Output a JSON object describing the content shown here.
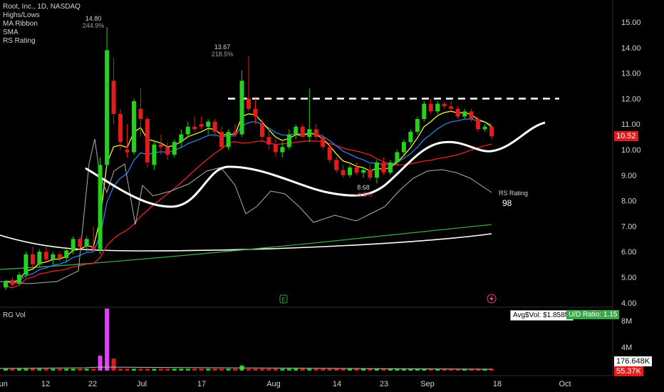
{
  "legend": {
    "title": "Root, Inc., 1D, NASDAQ",
    "items": [
      "Highs/Lows",
      "MA Ribbon",
      "SMA",
      "RS Rating"
    ]
  },
  "volume_legend": "RG Vol",
  "callouts": [
    {
      "price": "14.80",
      "pct": "244.9%"
    },
    {
      "price": "13.67",
      "pct": "218.5%"
    },
    {
      "price": "8.68",
      "pct": "–0.5%"
    }
  ],
  "rs": {
    "label": "RS Rating",
    "value": "98"
  },
  "badges": {
    "last_price": "10.52",
    "avg_vol": "Avg$Vol: $1.858M",
    "ud_ratio": "U/D Ratio: 1.15",
    "vol_white": "176.648K",
    "vol_red": "55.37K"
  },
  "colors": {
    "up": "#26d01f",
    "down": "#e21b1b",
    "ema_fast": "#f5f52a",
    "ema_mid": "#2f7ee8",
    "sma_red": "#e0201f",
    "sma_green": "#3aa84a",
    "white": "#ffffff",
    "rs": "#b0b0b0",
    "spike": "#e040fb"
  },
  "icons": {
    "earnings": "E",
    "dividend": "lightning"
  },
  "chart_data": {
    "type": "candlestick",
    "y_axis": {
      "ticks": [
        "15.00",
        "14.00",
        "13.00",
        "12.00",
        "11.00",
        "10.00",
        "9.00",
        "8.00",
        "7.00",
        "6.00",
        "5.00",
        "4.00"
      ],
      "range": [
        4.0,
        15.0
      ]
    },
    "x_axis": {
      "labels": [
        "Jun",
        "12",
        "22",
        "Jul",
        "17",
        "Aug",
        "14",
        "23",
        "Sep",
        "18",
        "Oct"
      ]
    },
    "vol_axis": {
      "ticks": [
        "8M",
        "4M"
      ]
    },
    "resistance_level": 12.0,
    "candles": [
      [
        4.6,
        4.9,
        4.5,
        4.85
      ],
      [
        4.9,
        5.0,
        4.6,
        4.7
      ],
      [
        4.75,
        5.2,
        4.7,
        5.1
      ],
      [
        5.1,
        6.0,
        5.0,
        5.9
      ],
      [
        5.9,
        6.2,
        5.4,
        5.5
      ],
      [
        5.5,
        6.1,
        5.4,
        6.0
      ],
      [
        6.0,
        6.2,
        5.6,
        5.7
      ],
      [
        5.7,
        6.0,
        5.5,
        5.9
      ],
      [
        5.9,
        6.0,
        5.6,
        5.75
      ],
      [
        5.75,
        6.1,
        5.6,
        6.05
      ],
      [
        6.05,
        6.6,
        5.9,
        6.5
      ],
      [
        6.5,
        6.6,
        6.1,
        6.2
      ],
      [
        6.2,
        6.6,
        6.0,
        6.5
      ],
      [
        6.2,
        7.0,
        6.0,
        6.1
      ],
      [
        6.1,
        9.7,
        5.9,
        9.4
      ],
      [
        9.4,
        14.8,
        9.3,
        13.9
      ],
      [
        12.7,
        13.6,
        11.0,
        11.4
      ],
      [
        11.4,
        11.6,
        10.0,
        10.3
      ],
      [
        10.0,
        11.0,
        9.7,
        9.9
      ],
      [
        9.9,
        12.0,
        9.8,
        11.9
      ],
      [
        11.6,
        12.4,
        10.5,
        11.2
      ],
      [
        11.2,
        11.3,
        9.3,
        9.5
      ],
      [
        9.4,
        10.3,
        9.2,
        10.2
      ],
      [
        10.2,
        10.6,
        9.8,
        10.1
      ],
      [
        10.1,
        10.3,
        9.6,
        9.8
      ],
      [
        9.8,
        10.4,
        9.7,
        10.3
      ],
      [
        10.3,
        10.8,
        10.1,
        10.6
      ],
      [
        10.6,
        11.1,
        10.5,
        10.9
      ],
      [
        10.9,
        11.3,
        10.7,
        10.8
      ],
      [
        11.0,
        11.3,
        10.8,
        10.9
      ],
      [
        10.9,
        11.2,
        10.6,
        11.1
      ],
      [
        11.1,
        11.2,
        10.5,
        10.7
      ],
      [
        10.7,
        10.9,
        10.0,
        10.1
      ],
      [
        10.1,
        10.8,
        10.0,
        10.7
      ],
      [
        10.7,
        11.0,
        10.5,
        10.6
      ],
      [
        10.6,
        13.1,
        10.5,
        12.7
      ],
      [
        12.0,
        13.67,
        11.5,
        11.6
      ],
      [
        11.6,
        12.0,
        11.0,
        11.3
      ],
      [
        11.0,
        11.2,
        10.3,
        10.5
      ],
      [
        10.5,
        10.8,
        10.0,
        10.2
      ],
      [
        10.2,
        10.4,
        9.7,
        9.9
      ],
      [
        9.9,
        10.3,
        9.7,
        10.1
      ],
      [
        10.1,
        10.8,
        10.0,
        10.6
      ],
      [
        10.6,
        11.0,
        10.4,
        10.9
      ],
      [
        10.9,
        11.0,
        10.5,
        10.5
      ],
      [
        10.5,
        12.4,
        10.3,
        10.8
      ],
      [
        10.8,
        11.0,
        10.4,
        10.5
      ],
      [
        10.5,
        10.6,
        10.0,
        10.1
      ],
      [
        10.1,
        10.2,
        9.5,
        9.6
      ],
      [
        9.6,
        9.7,
        9.1,
        9.2
      ],
      [
        9.2,
        9.4,
        8.9,
        9.0
      ],
      [
        9.0,
        9.4,
        8.9,
        9.3
      ],
      [
        9.3,
        9.5,
        9.0,
        9.1
      ],
      [
        9.1,
        9.3,
        8.9,
        9.2
      ],
      [
        9.2,
        9.4,
        8.8,
        8.9
      ],
      [
        8.9,
        9.6,
        8.68,
        9.5
      ],
      [
        9.5,
        9.7,
        9.0,
        9.1
      ],
      [
        9.1,
        9.6,
        9.0,
        9.5
      ],
      [
        9.5,
        10.0,
        9.4,
        9.9
      ],
      [
        9.9,
        10.4,
        9.8,
        10.3
      ],
      [
        10.3,
        10.8,
        10.2,
        10.7
      ],
      [
        10.7,
        11.3,
        10.6,
        11.2
      ],
      [
        11.2,
        11.9,
        11.1,
        11.8
      ],
      [
        11.8,
        12.0,
        11.4,
        11.5
      ],
      [
        11.5,
        11.9,
        11.4,
        11.8
      ],
      [
        11.8,
        11.9,
        11.6,
        11.7
      ],
      [
        11.7,
        11.9,
        11.5,
        11.6
      ],
      [
        11.6,
        11.7,
        11.2,
        11.3
      ],
      [
        11.3,
        11.6,
        11.2,
        11.5
      ],
      [
        11.5,
        11.6,
        11.1,
        11.2
      ],
      [
        11.2,
        11.3,
        10.7,
        10.8
      ],
      [
        10.8,
        11.0,
        10.7,
        10.9
      ],
      [
        10.9,
        10.95,
        10.4,
        10.52
      ]
    ]
  }
}
